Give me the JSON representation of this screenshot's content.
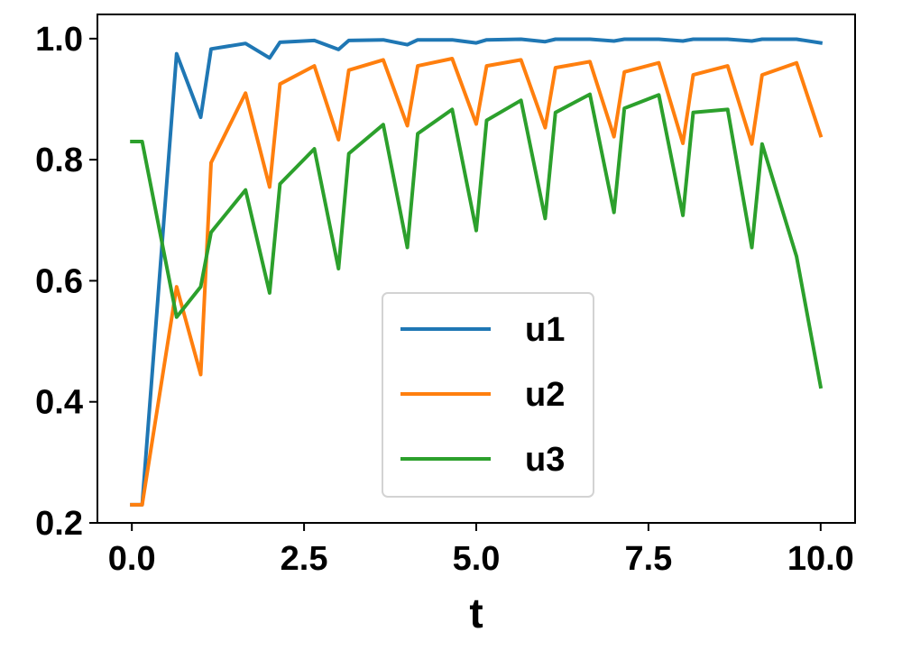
{
  "chart_data": {
    "type": "line",
    "title": "",
    "xlabel": "t",
    "ylabel": "",
    "xlim": [
      -0.5,
      10.5
    ],
    "ylim": [
      0.2,
      1.04
    ],
    "xticks": [
      0.0,
      2.5,
      5.0,
      7.5,
      10.0
    ],
    "xtick_labels": [
      "0.0",
      "2.5",
      "5.0",
      "7.5",
      "10.0"
    ],
    "yticks": [
      0.2,
      0.4,
      0.6,
      0.8,
      1.0
    ],
    "ytick_labels": [
      "0.2",
      "0.4",
      "0.6",
      "0.8",
      "1.0"
    ],
    "grid": false,
    "legend_position": "lower-center",
    "series": [
      {
        "name": "u1",
        "color": "#1f77b4",
        "points": [
          [
            0.0,
            0.23
          ],
          [
            0.15,
            0.23
          ],
          [
            0.65,
            0.975
          ],
          [
            1.0,
            0.87
          ],
          [
            1.15,
            0.983
          ],
          [
            1.65,
            0.992
          ],
          [
            2.0,
            0.968
          ],
          [
            2.15,
            0.994
          ],
          [
            2.65,
            0.997
          ],
          [
            3.0,
            0.982
          ],
          [
            3.15,
            0.997
          ],
          [
            3.65,
            0.998
          ],
          [
            4.0,
            0.99
          ],
          [
            4.15,
            0.998
          ],
          [
            4.65,
            0.998
          ],
          [
            5.0,
            0.993
          ],
          [
            5.15,
            0.998
          ],
          [
            5.65,
            0.999
          ],
          [
            6.0,
            0.995
          ],
          [
            6.15,
            0.999
          ],
          [
            6.65,
            0.999
          ],
          [
            7.0,
            0.996
          ],
          [
            7.15,
            0.999
          ],
          [
            7.65,
            0.999
          ],
          [
            8.0,
            0.996
          ],
          [
            8.15,
            0.999
          ],
          [
            8.65,
            0.999
          ],
          [
            9.0,
            0.996
          ],
          [
            9.15,
            0.999
          ],
          [
            9.65,
            0.999
          ],
          [
            10.0,
            0.993
          ]
        ]
      },
      {
        "name": "u2",
        "color": "#ff7f0e",
        "points": [
          [
            0.0,
            0.23
          ],
          [
            0.15,
            0.23
          ],
          [
            0.65,
            0.59
          ],
          [
            1.0,
            0.445
          ],
          [
            1.15,
            0.795
          ],
          [
            1.65,
            0.91
          ],
          [
            2.0,
            0.755
          ],
          [
            2.15,
            0.925
          ],
          [
            2.65,
            0.955
          ],
          [
            3.0,
            0.833
          ],
          [
            3.15,
            0.948
          ],
          [
            3.65,
            0.965
          ],
          [
            4.0,
            0.856
          ],
          [
            4.15,
            0.955
          ],
          [
            4.65,
            0.967
          ],
          [
            5.0,
            0.859
          ],
          [
            5.15,
            0.955
          ],
          [
            5.65,
            0.965
          ],
          [
            6.0,
            0.853
          ],
          [
            6.15,
            0.952
          ],
          [
            6.65,
            0.962
          ],
          [
            7.0,
            0.838
          ],
          [
            7.15,
            0.945
          ],
          [
            7.65,
            0.96
          ],
          [
            8.0,
            0.827
          ],
          [
            8.15,
            0.94
          ],
          [
            8.65,
            0.955
          ],
          [
            9.0,
            0.826
          ],
          [
            9.15,
            0.94
          ],
          [
            9.65,
            0.96
          ],
          [
            10.0,
            0.84
          ]
        ]
      },
      {
        "name": "u3",
        "color": "#2ca02c",
        "points": [
          [
            0.0,
            0.83
          ],
          [
            0.15,
            0.83
          ],
          [
            0.65,
            0.54
          ],
          [
            1.0,
            0.59
          ],
          [
            1.15,
            0.68
          ],
          [
            1.65,
            0.75
          ],
          [
            2.0,
            0.58
          ],
          [
            2.15,
            0.76
          ],
          [
            2.65,
            0.818
          ],
          [
            3.0,
            0.62
          ],
          [
            3.15,
            0.81
          ],
          [
            3.65,
            0.858
          ],
          [
            4.0,
            0.655
          ],
          [
            4.15,
            0.843
          ],
          [
            4.65,
            0.883
          ],
          [
            5.0,
            0.683
          ],
          [
            5.15,
            0.865
          ],
          [
            5.65,
            0.898
          ],
          [
            6.0,
            0.703
          ],
          [
            6.15,
            0.878
          ],
          [
            6.65,
            0.908
          ],
          [
            7.0,
            0.713
          ],
          [
            7.15,
            0.885
          ],
          [
            7.65,
            0.907
          ],
          [
            8.0,
            0.708
          ],
          [
            8.15,
            0.878
          ],
          [
            8.65,
            0.883
          ],
          [
            9.0,
            0.655
          ],
          [
            9.15,
            0.826
          ],
          [
            9.65,
            0.64
          ],
          [
            10.0,
            0.425
          ]
        ]
      }
    ]
  }
}
